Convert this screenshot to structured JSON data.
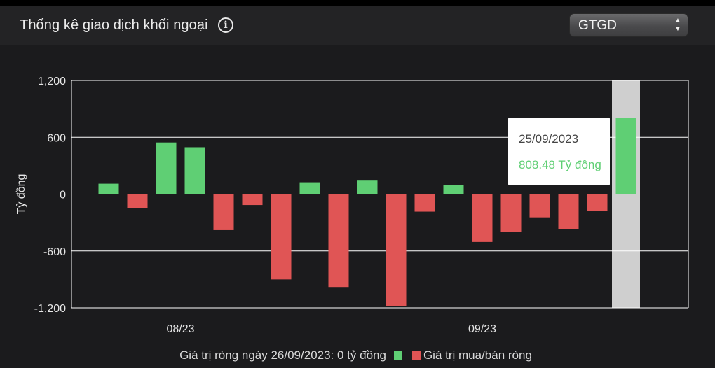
{
  "header": {
    "title": "Thống kê giao dịch khối ngoại",
    "info_icon": "info-circle-icon",
    "select_value": "GTGD"
  },
  "colors": {
    "positive": "#5fcf74",
    "negative": "#e05555",
    "highlight_band": "#cfcfcf",
    "background": "#1b1b1d"
  },
  "tooltip": {
    "date": "25/09/2023",
    "value": "808.48 Tỷ đồng"
  },
  "legend": {
    "net_today": "Giá trị ròng ngày 26/09/2023: 0 tỷ đồng",
    "series_label": "Giá trị mua/bán ròng"
  },
  "chart_data": {
    "type": "bar",
    "title": "Thống kê giao dịch khối ngoại",
    "xlabel": "",
    "ylabel": "Tỷ đồng",
    "ylim": [
      -1200,
      1200
    ],
    "yticks": [
      1200,
      600,
      0,
      -600,
      -1200
    ],
    "ytick_labels": [
      "1,200",
      "600",
      "0",
      "-600",
      "-1,200"
    ],
    "xtick_labels": [
      {
        "label": "08/23",
        "index": 2.5
      },
      {
        "label": "09/23",
        "index": 13
      }
    ],
    "highlight_index": 18,
    "grid": true,
    "legend_position": "bottom",
    "series": [
      {
        "name": "Giá trị mua/bán ròng",
        "values": [
          110,
          -150,
          545,
          495,
          -380,
          -115,
          -900,
          125,
          -980,
          150,
          -1185,
          -185,
          95,
          -505,
          -400,
          -245,
          -370,
          -180,
          808.48
        ]
      }
    ]
  }
}
